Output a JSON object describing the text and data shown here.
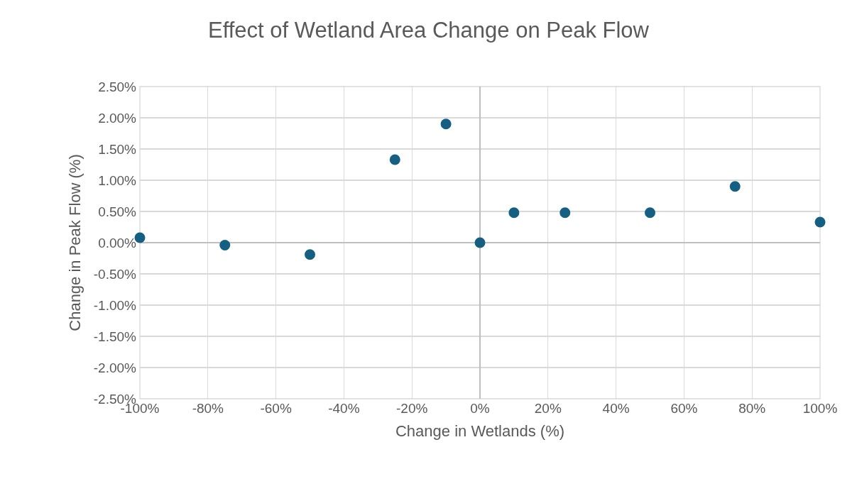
{
  "chart_data": {
    "type": "scatter",
    "title": "Effect of Wetland Area Change on Peak Flow",
    "xlabel": "Change in Wetlands (%)",
    "ylabel": "Change in Peak Flow (%)",
    "x": [
      -100,
      -75,
      -50,
      -25,
      -10,
      0,
      10,
      25,
      50,
      75,
      100
    ],
    "series": [
      {
        "color": "#156082",
        "values": [
          0.08,
          -0.04,
          -0.19,
          1.33,
          1.9,
          0,
          0.48,
          0.48,
          0.48,
          0.9,
          0.33
        ]
      }
    ],
    "marker": "circle",
    "grid": true,
    "xlim": [
      -100,
      100
    ],
    "xticks": [
      {
        "value": -100,
        "label": "-100%"
      },
      {
        "value": -80,
        "label": "-80%"
      },
      {
        "value": -60,
        "label": "-60%"
      },
      {
        "value": -40,
        "label": "-40%"
      },
      {
        "value": -20,
        "label": "-20%"
      },
      {
        "value": 0,
        "label": "0%"
      },
      {
        "value": 20,
        "label": "20%"
      },
      {
        "value": 40,
        "label": "40%"
      },
      {
        "value": 60,
        "label": "60%"
      },
      {
        "value": 80,
        "label": "80%"
      },
      {
        "value": 100,
        "label": "100%"
      }
    ],
    "ylim": [
      -2.5,
      2.5
    ],
    "yticks": [
      {
        "value": -2.5,
        "label": "-2.50%"
      },
      {
        "value": -2,
        "label": "-2.00%"
      },
      {
        "value": -1.5,
        "label": "-1.50%"
      },
      {
        "value": -1,
        "label": "-1.00%"
      },
      {
        "value": -0.5,
        "label": "-0.50%"
      },
      {
        "value": 0,
        "label": "0.00%"
      },
      {
        "value": 0.5,
        "label": "0.50%"
      },
      {
        "value": 1,
        "label": "1.00%"
      },
      {
        "value": 1.5,
        "label": "1.50%"
      },
      {
        "value": 2,
        "label": "2.00%"
      },
      {
        "value": 2.5,
        "label": "2.50%"
      }
    ]
  }
}
